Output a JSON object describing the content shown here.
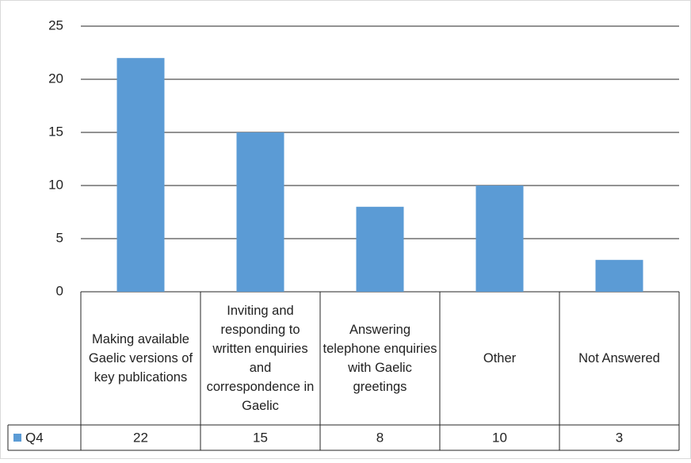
{
  "chart_data": {
    "type": "bar",
    "categories": [
      "Making available Gaelic versions of key publications",
      "Inviting and responding to written enquiries and correspondence in Gaelic",
      "Answering telephone enquiries with Gaelic greetings",
      "Other",
      "Not Answered"
    ],
    "series": [
      {
        "name": "Q4",
        "color": "#5b9bd5",
        "values": [
          22,
          15,
          8,
          10,
          3
        ]
      }
    ],
    "ylim": [
      0,
      25
    ],
    "yticks": [
      0,
      5,
      10,
      15,
      20,
      25
    ],
    "grid": true,
    "data_table": true
  }
}
